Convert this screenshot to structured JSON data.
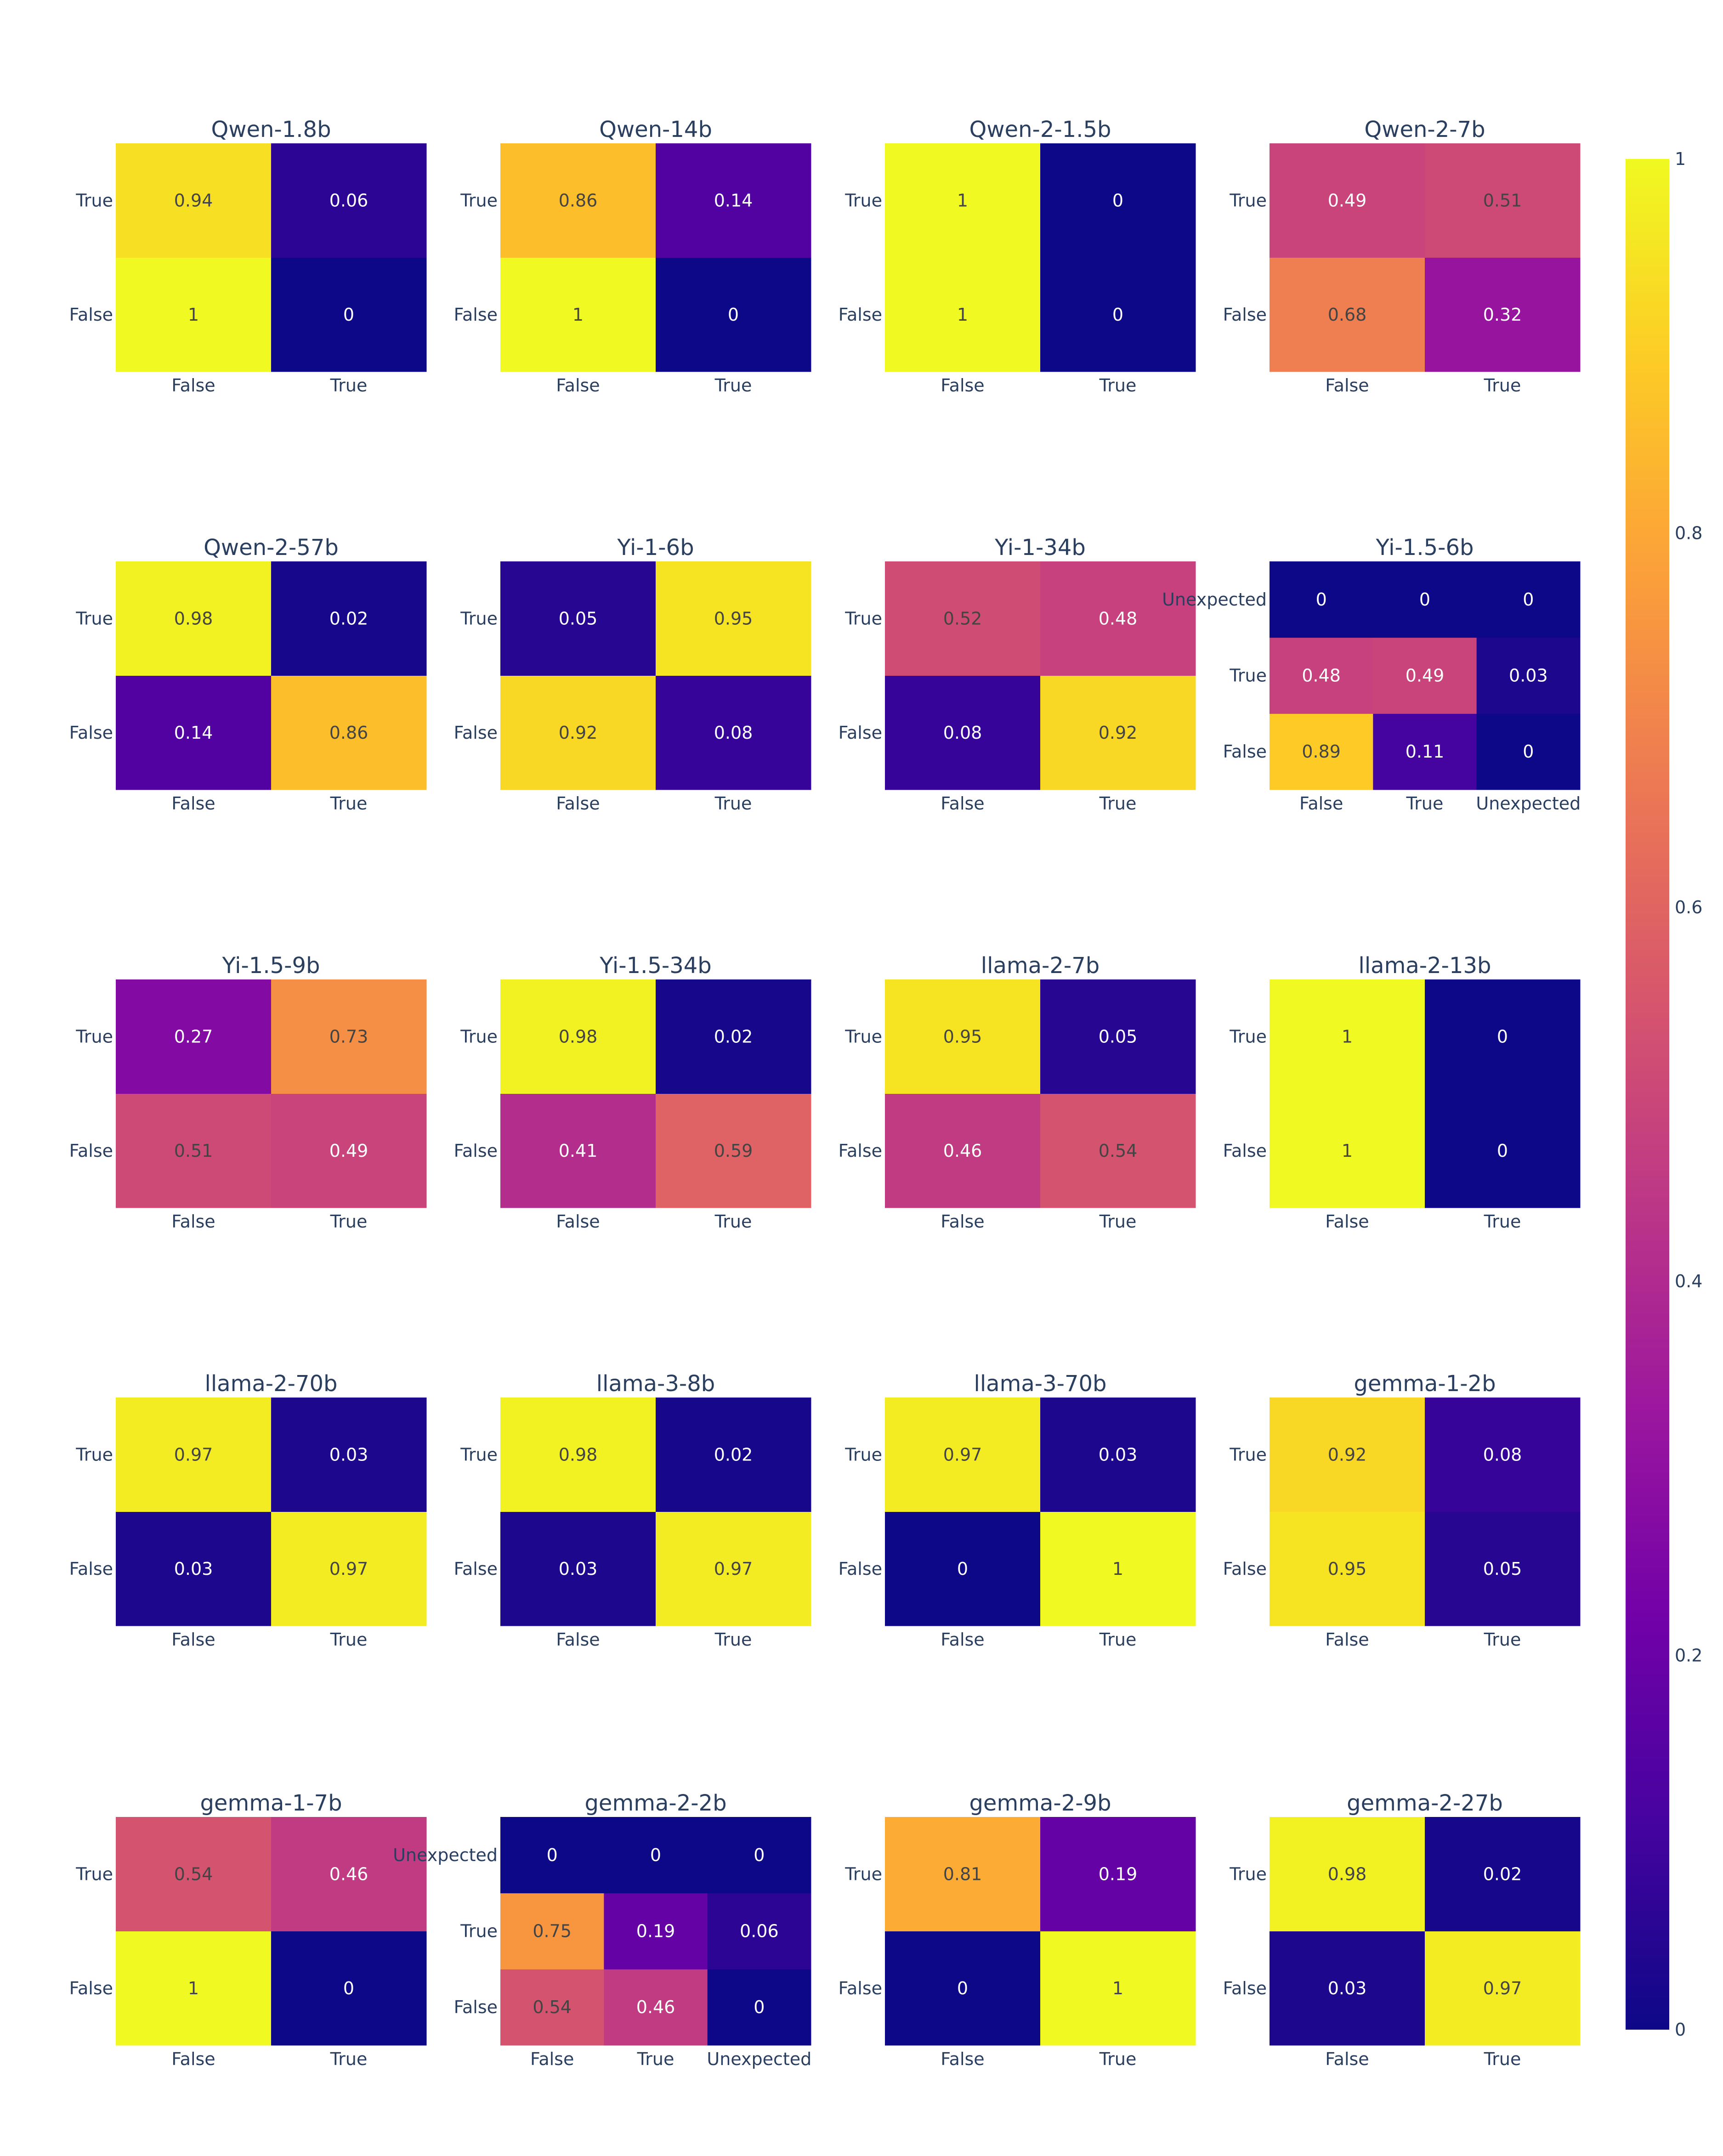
{
  "chart_data": {
    "type": "heatmap",
    "colorscale": "Plasma",
    "zlim": [
      0,
      1
    ],
    "colorbar_ticks": [
      "0",
      "0.2",
      "0.4",
      "0.6",
      "0.8",
      "1"
    ],
    "colors": {
      "text_dark": "#2a3f5f",
      "plasma": [
        "#0d0887",
        "#46039f",
        "#7201a8",
        "#9c179e",
        "#bd3786",
        "#d8576b",
        "#ed7953",
        "#fb9f3a",
        "#fdca26",
        "#f0f921"
      ]
    },
    "panels": [
      {
        "title": "Qwen-1.8b",
        "x": [
          "False",
          "True"
        ],
        "y": [
          "False",
          "True"
        ],
        "z": [
          [
            1,
            0
          ],
          [
            0.94,
            0.06
          ]
        ]
      },
      {
        "title": "Qwen-14b",
        "x": [
          "False",
          "True"
        ],
        "y": [
          "False",
          "True"
        ],
        "z": [
          [
            1,
            0
          ],
          [
            0.86,
            0.14
          ]
        ]
      },
      {
        "title": "Qwen-2-1.5b",
        "x": [
          "False",
          "True"
        ],
        "y": [
          "False",
          "True"
        ],
        "z": [
          [
            1,
            0
          ],
          [
            1,
            0
          ]
        ]
      },
      {
        "title": "Qwen-2-7b",
        "x": [
          "False",
          "True"
        ],
        "y": [
          "False",
          "True"
        ],
        "z": [
          [
            0.68,
            0.32
          ],
          [
            0.49,
            0.51
          ]
        ]
      },
      {
        "title": "Qwen-2-57b",
        "x": [
          "False",
          "True"
        ],
        "y": [
          "False",
          "True"
        ],
        "z": [
          [
            0.14,
            0.86
          ],
          [
            0.98,
            0.02
          ]
        ]
      },
      {
        "title": "Yi-1-6b",
        "x": [
          "False",
          "True"
        ],
        "y": [
          "False",
          "True"
        ],
        "z": [
          [
            0.92,
            0.08
          ],
          [
            0.05,
            0.95
          ]
        ]
      },
      {
        "title": "Yi-1-34b",
        "x": [
          "False",
          "True"
        ],
        "y": [
          "False",
          "True"
        ],
        "z": [
          [
            0.08,
            0.92
          ],
          [
            0.52,
            0.48
          ]
        ]
      },
      {
        "title": "Yi-1.5-6b",
        "x": [
          "False",
          "True",
          "Unexpected"
        ],
        "y": [
          "False",
          "True",
          "Unexpected"
        ],
        "z": [
          [
            0.89,
            0.11,
            0
          ],
          [
            0.48,
            0.49,
            0.03
          ],
          [
            0,
            0,
            0
          ]
        ]
      },
      {
        "title": "Yi-1.5-9b",
        "x": [
          "False",
          "True"
        ],
        "y": [
          "False",
          "True"
        ],
        "z": [
          [
            0.51,
            0.49
          ],
          [
            0.27,
            0.73
          ]
        ]
      },
      {
        "title": "Yi-1.5-34b",
        "x": [
          "False",
          "True"
        ],
        "y": [
          "False",
          "True"
        ],
        "z": [
          [
            0.41,
            0.59
          ],
          [
            0.98,
            0.02
          ]
        ]
      },
      {
        "title": "llama-2-7b",
        "x": [
          "False",
          "True"
        ],
        "y": [
          "False",
          "True"
        ],
        "z": [
          [
            0.46,
            0.54
          ],
          [
            0.95,
            0.05
          ]
        ]
      },
      {
        "title": "llama-2-13b",
        "x": [
          "False",
          "True"
        ],
        "y": [
          "False",
          "True"
        ],
        "z": [
          [
            1,
            0
          ],
          [
            1,
            0
          ]
        ]
      },
      {
        "title": "llama-2-70b",
        "x": [
          "False",
          "True"
        ],
        "y": [
          "False",
          "True"
        ],
        "z": [
          [
            0.03,
            0.97
          ],
          [
            0.97,
            0.03
          ]
        ]
      },
      {
        "title": "llama-3-8b",
        "x": [
          "False",
          "True"
        ],
        "y": [
          "False",
          "True"
        ],
        "z": [
          [
            0.03,
            0.97
          ],
          [
            0.98,
            0.02
          ]
        ]
      },
      {
        "title": "llama-3-70b",
        "x": [
          "False",
          "True"
        ],
        "y": [
          "False",
          "True"
        ],
        "z": [
          [
            0,
            1
          ],
          [
            0.97,
            0.03
          ]
        ]
      },
      {
        "title": "gemma-1-2b",
        "x": [
          "False",
          "True"
        ],
        "y": [
          "False",
          "True"
        ],
        "z": [
          [
            0.95,
            0.05
          ],
          [
            0.92,
            0.08
          ]
        ]
      },
      {
        "title": "gemma-1-7b",
        "x": [
          "False",
          "True"
        ],
        "y": [
          "False",
          "True"
        ],
        "z": [
          [
            1,
            0
          ],
          [
            0.54,
            0.46
          ]
        ]
      },
      {
        "title": "gemma-2-2b",
        "x": [
          "False",
          "True",
          "Unexpected"
        ],
        "y": [
          "False",
          "True",
          "Unexpected"
        ],
        "z": [
          [
            0.54,
            0.46,
            0
          ],
          [
            0.75,
            0.19,
            0.06
          ],
          [
            0,
            0,
            0
          ]
        ]
      },
      {
        "title": "gemma-2-9b",
        "x": [
          "False",
          "True"
        ],
        "y": [
          "False",
          "True"
        ],
        "z": [
          [
            0,
            1
          ],
          [
            0.81,
            0.19
          ]
        ]
      },
      {
        "title": "gemma-2-27b",
        "x": [
          "False",
          "True"
        ],
        "y": [
          "False",
          "True"
        ],
        "z": [
          [
            0.03,
            0.97
          ],
          [
            0.98,
            0.02
          ]
        ]
      }
    ]
  }
}
